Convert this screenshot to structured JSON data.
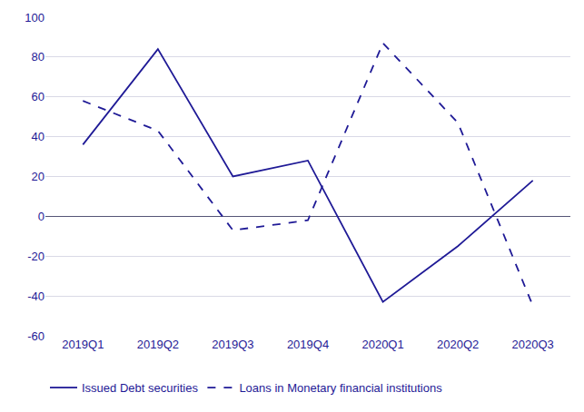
{
  "chart_data": {
    "type": "line",
    "categories": [
      "2019Q1",
      "2019Q2",
      "2019Q3",
      "2019Q4",
      "2020Q1",
      "2020Q2",
      "2020Q3"
    ],
    "series": [
      {
        "name": "Issued Debt securities",
        "color": "#1f1a96",
        "line_style": "solid",
        "values": [
          36,
          84,
          20,
          28,
          -43,
          -15,
          18
        ]
      },
      {
        "name": "Loans in Monetary financial institutions",
        "color": "#1f1a96",
        "line_style": "dash",
        "values": [
          58,
          43,
          -7,
          -2,
          87,
          47,
          -45
        ]
      }
    ],
    "ylim": [
      -60,
      100
    ],
    "yticks": [
      -60,
      -40,
      -20,
      0,
      20,
      40,
      60,
      80,
      100
    ],
    "grid": true,
    "legend": "bottom"
  }
}
